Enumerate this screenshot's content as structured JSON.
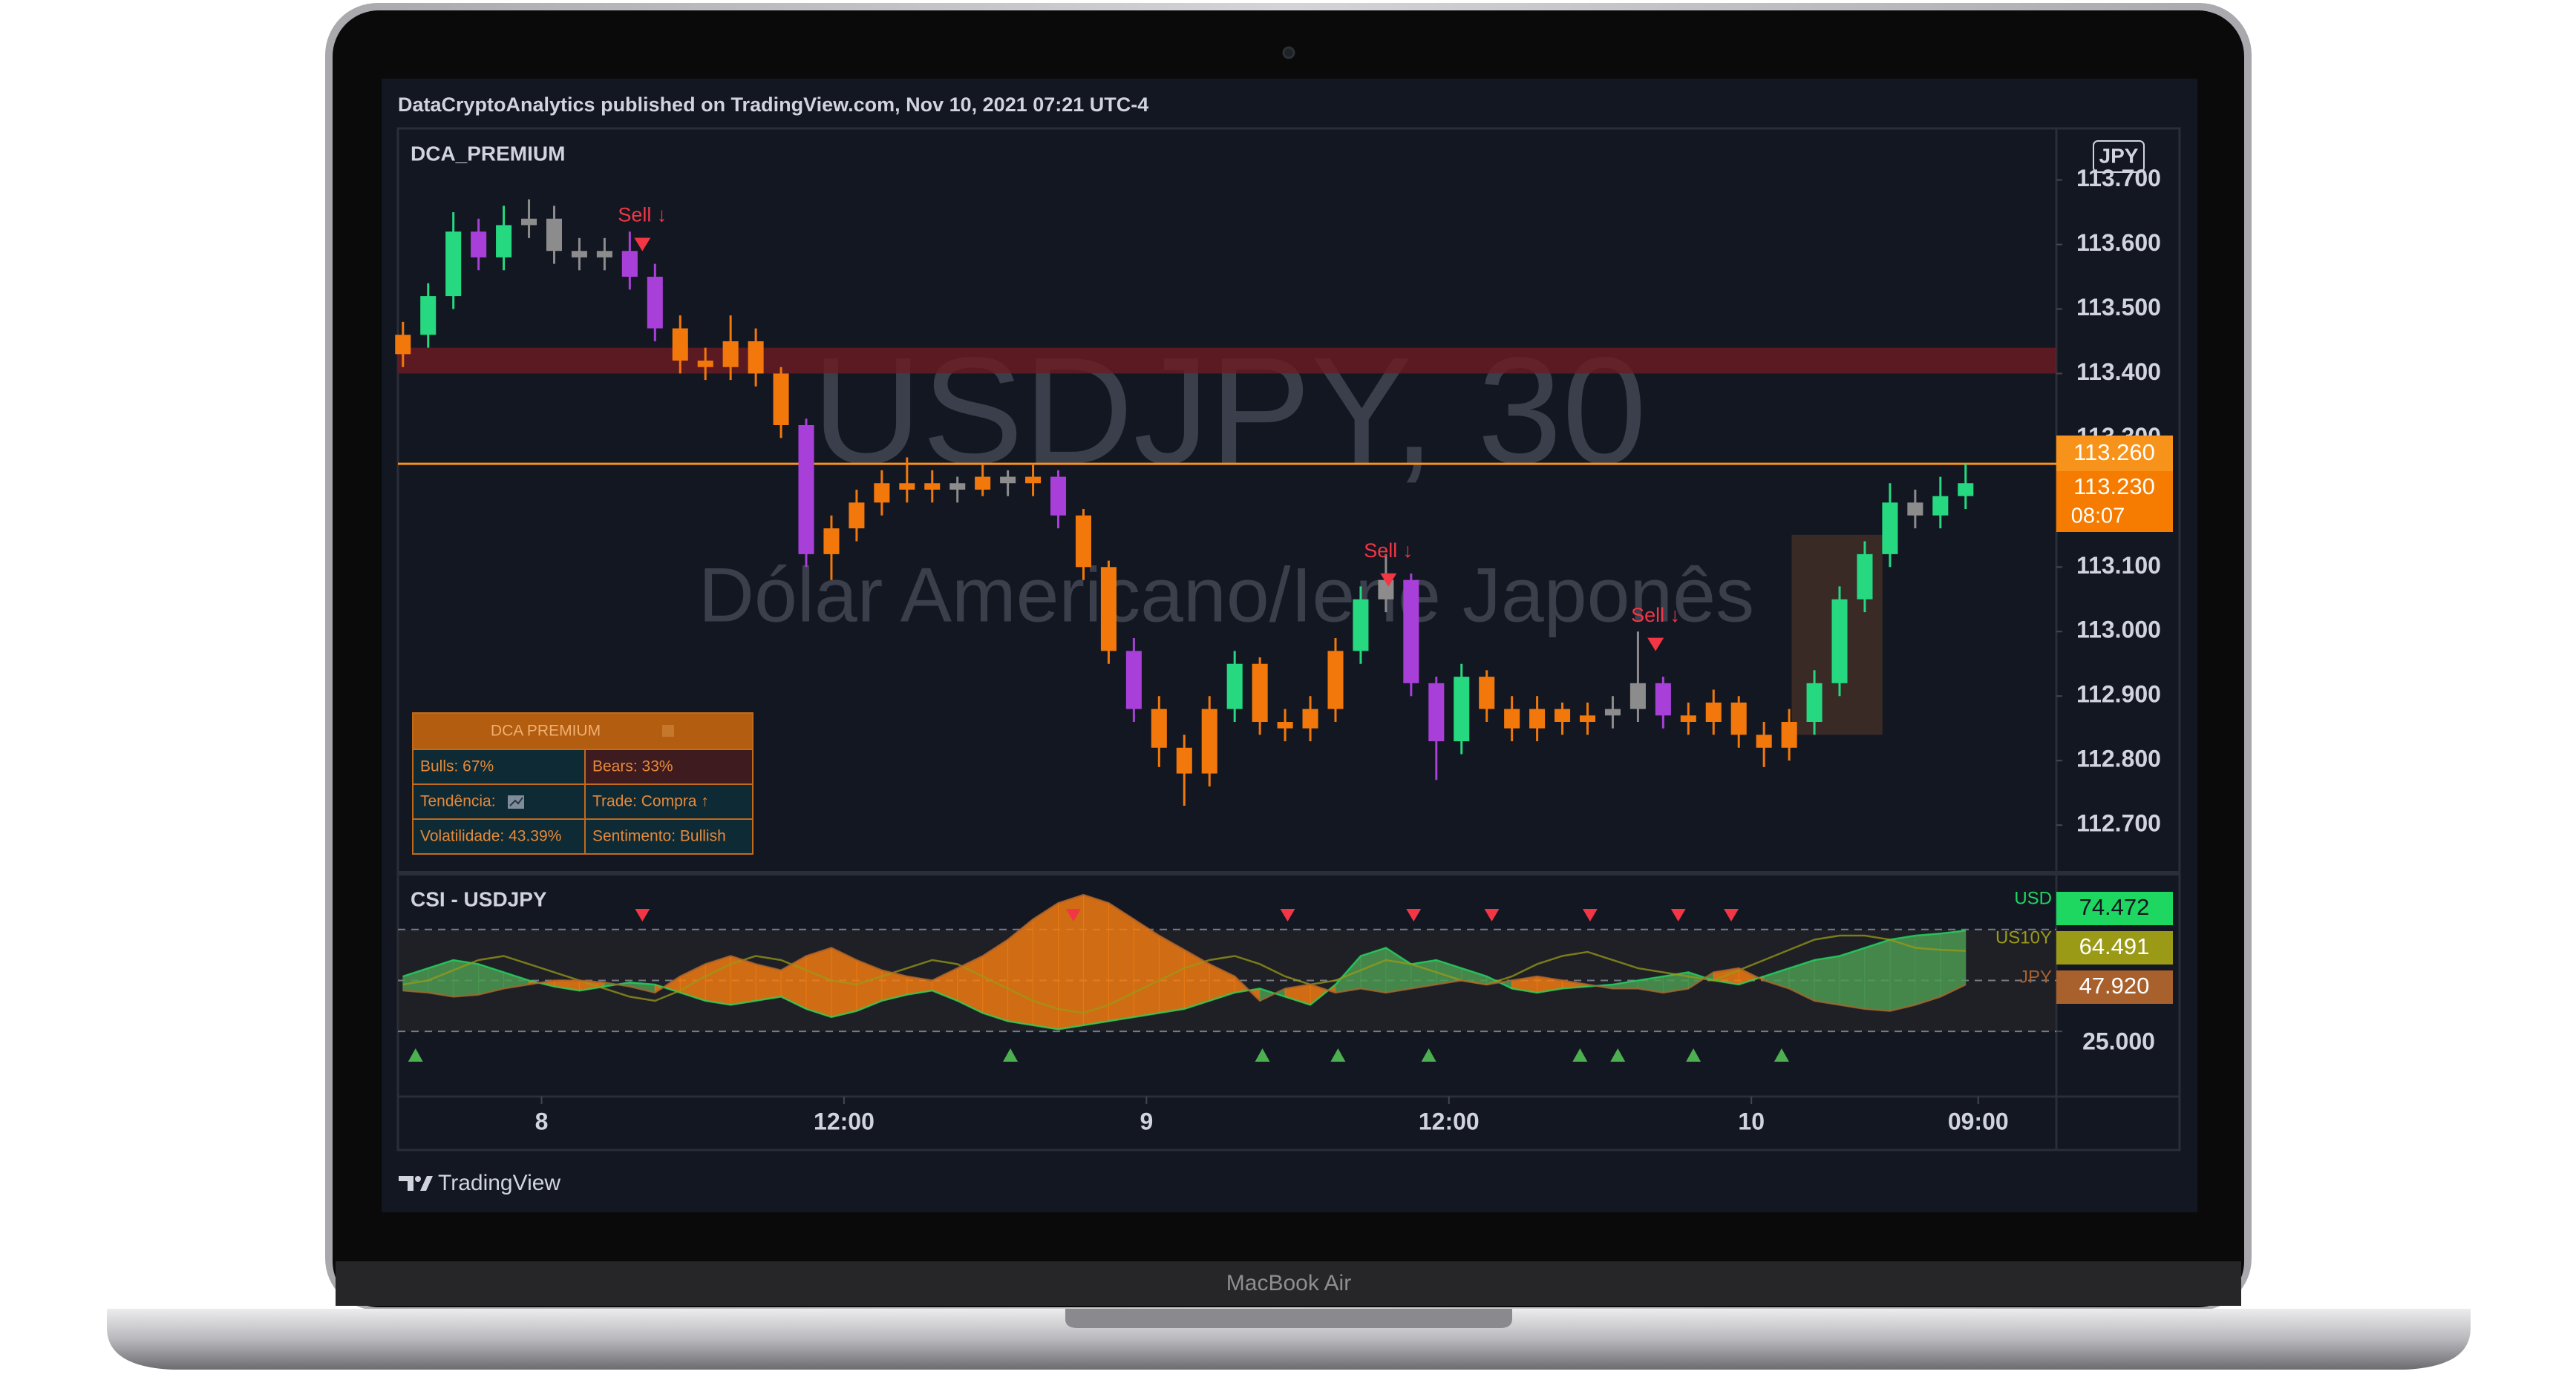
{
  "header": {
    "published": "DataCryptoAnalytics published on TradingView.com, Nov 10, 2021 07:21 UTC-4"
  },
  "device": {
    "label": "MacBook Air"
  },
  "footer": {
    "brand": "TradingView"
  },
  "table": {
    "title": "DCA PREMIUM",
    "rows": [
      [
        "Bulls: 67%",
        "Bears: 33%"
      ],
      [
        "Tendência:",
        "Trade: Compra ↑"
      ],
      [
        "Volatilidade: 43.39%",
        "Sentimento: Bullish"
      ]
    ]
  },
  "chart_data": [
    {
      "type": "candlestick",
      "title": "DCA_PREMIUM",
      "watermark": "USDJPY, 30",
      "watermark_subtitle": "Dólar Americano/Iene Japonês",
      "currency": "JPY",
      "x": [
        -5.5,
        -4.5,
        -3.5,
        -2.5,
        -1.5,
        -0.5,
        0.5,
        1.5,
        2.5,
        3.5,
        4.5,
        5.5,
        6.5,
        7.5,
        8.5,
        9.5,
        10.5,
        11.5,
        12.5,
        13.5,
        14.5,
        15.5,
        16.5,
        17.5,
        18.5,
        19.5,
        20.5,
        21.5,
        22.5,
        23.5,
        24.5,
        25.5,
        26.5,
        27.5,
        28.5,
        29.5,
        30.5,
        31.5,
        32.5,
        33.5,
        34.5,
        35.5,
        36.5,
        37.5,
        38.5,
        39.5,
        40.5,
        41.5,
        42.5,
        43.5,
        44.5,
        45.5,
        46.5,
        47.5,
        48.5,
        49.5,
        50.5,
        51.5,
        52.5,
        53.5,
        54.5,
        55.5,
        56.5
      ],
      "open": [
        113.43,
        113.46,
        113.52,
        113.62,
        113.58,
        113.63,
        113.64,
        113.59,
        113.58,
        113.59,
        113.55,
        113.47,
        113.42,
        113.41,
        113.45,
        113.4,
        113.32,
        113.12,
        113.16,
        113.2,
        113.23,
        113.22,
        113.23,
        113.22,
        113.24,
        113.23,
        113.24,
        113.18,
        113.1,
        112.97,
        112.88,
        112.82,
        112.78,
        112.88,
        112.95,
        112.86,
        112.85,
        112.88,
        112.97,
        113.05,
        113.08,
        112.92,
        112.83,
        112.93,
        112.88,
        112.85,
        112.88,
        112.86,
        112.87,
        112.88,
        112.92,
        112.87,
        112.86,
        112.89,
        112.84,
        112.82,
        112.86,
        112.92,
        113.05,
        113.12,
        113.2,
        113.18,
        113.21
      ],
      "high": [
        113.48,
        113.54,
        113.65,
        113.64,
        113.66,
        113.67,
        113.66,
        113.61,
        113.61,
        113.62,
        113.57,
        113.49,
        113.44,
        113.49,
        113.47,
        113.41,
        113.33,
        113.18,
        113.22,
        113.25,
        113.27,
        113.25,
        113.24,
        113.26,
        113.25,
        113.26,
        113.25,
        113.19,
        113.11,
        112.99,
        112.9,
        112.84,
        112.9,
        112.97,
        112.96,
        112.88,
        112.9,
        112.99,
        113.07,
        113.12,
        113.09,
        112.93,
        112.95,
        112.94,
        112.9,
        112.9,
        112.89,
        112.89,
        112.9,
        113.0,
        112.93,
        112.89,
        112.91,
        112.9,
        112.86,
        112.88,
        112.94,
        113.07,
        113.14,
        113.23,
        113.22,
        113.24,
        113.26
      ],
      "low": [
        113.41,
        113.44,
        113.5,
        113.56,
        113.56,
        113.61,
        113.57,
        113.56,
        113.56,
        113.53,
        113.45,
        113.4,
        113.39,
        113.39,
        113.38,
        113.3,
        113.1,
        113.08,
        113.14,
        113.18,
        113.2,
        113.2,
        113.2,
        113.21,
        113.21,
        113.21,
        113.16,
        113.08,
        112.95,
        112.86,
        112.79,
        112.73,
        112.76,
        112.86,
        112.84,
        112.83,
        112.83,
        112.86,
        112.95,
        113.03,
        112.9,
        112.77,
        112.81,
        112.86,
        112.83,
        112.83,
        112.84,
        112.84,
        112.85,
        112.86,
        112.85,
        112.84,
        112.84,
        112.82,
        112.79,
        112.8,
        112.84,
        112.9,
        113.03,
        113.1,
        113.16,
        113.16,
        113.19
      ],
      "close": [
        113.46,
        113.52,
        113.62,
        113.58,
        113.63,
        113.64,
        113.59,
        113.58,
        113.59,
        113.55,
        113.47,
        113.42,
        113.41,
        113.45,
        113.4,
        113.32,
        113.12,
        113.16,
        113.2,
        113.23,
        113.22,
        113.23,
        113.22,
        113.24,
        113.23,
        113.24,
        113.18,
        113.1,
        112.97,
        112.88,
        112.82,
        112.78,
        112.88,
        112.95,
        112.86,
        112.85,
        112.88,
        112.97,
        113.05,
        113.08,
        112.92,
        112.83,
        112.93,
        112.88,
        112.85,
        112.88,
        112.86,
        112.87,
        112.88,
        112.92,
        112.87,
        112.86,
        112.89,
        112.84,
        112.82,
        112.86,
        112.92,
        113.05,
        113.12,
        113.2,
        113.18,
        113.21,
        113.23
      ],
      "colors": [
        "#f2780c",
        "#26d980",
        "#26d980",
        "#a83fd9",
        "#26d980",
        "#8c8c8c",
        "#8c8c8c",
        "#8c8c8c",
        "#8c8c8c",
        "#a83fd9",
        "#a83fd9",
        "#f2780c",
        "#f2780c",
        "#f2780c",
        "#f2780c",
        "#f2780c",
        "#a83fd9",
        "#f2780c",
        "#f2780c",
        "#f2780c",
        "#f2780c",
        "#f2780c",
        "#8c8c8c",
        "#f2780c",
        "#8c8c8c",
        "#f2780c",
        "#a83fd9",
        "#f2780c",
        "#f2780c",
        "#a83fd9",
        "#f2780c",
        "#f2780c",
        "#f2780c",
        "#26d980",
        "#f2780c",
        "#f2780c",
        "#f2780c",
        "#f2780c",
        "#26d980",
        "#8c8c8c",
        "#a83fd9",
        "#a83fd9",
        "#26d980",
        "#f2780c",
        "#f2780c",
        "#f2780c",
        "#f2780c",
        "#f2780c",
        "#8c8c8c",
        "#8c8c8c",
        "#a83fd9",
        "#f2780c",
        "#f2780c",
        "#f2780c",
        "#f2780c",
        "#f2780c",
        "#26d980",
        "#26d980",
        "#26d980",
        "#26d980",
        "#8c8c8c",
        "#26d980",
        "#26d980"
      ],
      "xlim": [
        -5.7,
        60.1
      ],
      "ylim": [
        112.63,
        113.78
      ],
      "yticks": [
        {
          "value": 113.7,
          "label": "113.700"
        },
        {
          "value": 113.6,
          "label": "113.600"
        },
        {
          "value": 113.5,
          "label": "113.500"
        },
        {
          "value": 113.4,
          "label": "113.400"
        },
        {
          "value": 113.3,
          "label": "113.300"
        },
        {
          "value": 113.1,
          "label": "113.100"
        },
        {
          "value": 113.0,
          "label": "113.000"
        },
        {
          "value": 112.9,
          "label": "112.900"
        },
        {
          "value": 112.8,
          "label": "112.800"
        },
        {
          "value": 112.7,
          "label": "112.700"
        }
      ],
      "xticks": [
        {
          "value": 0,
          "label": "8"
        },
        {
          "value": 12,
          "label": "12:00"
        },
        {
          "value": 24,
          "label": "9"
        },
        {
          "value": 36,
          "label": "12:00"
        },
        {
          "value": 48,
          "label": "10"
        },
        {
          "value": 57,
          "label": "09:00"
        }
      ],
      "zone": {
        "y": [
          113.4,
          113.44
        ],
        "color": "#6e1a22"
      },
      "highlight": {
        "x": [
          49.6,
          53.2
        ],
        "y": [
          112.84,
          113.15
        ],
        "color": "#5a3a2a"
      },
      "price_line": {
        "value": 113.26,
        "label": "113.260",
        "color": "#f7931a"
      },
      "last_price": {
        "value": 113.23,
        "label": "113.230",
        "countdown": "08:07",
        "color": "#f57c00"
      },
      "annotations": [
        {
          "text": "Sell ↓",
          "x": 4.0,
          "y": 113.6
        },
        {
          "text": "Sell ↓",
          "x": 33.6,
          "y": 113.08
        },
        {
          "text": "Sell ↓",
          "x": 44.2,
          "y": 112.98
        }
      ],
      "annotation_color": "#f23645"
    },
    {
      "type": "line",
      "title": "CSI - USDJPY",
      "x": [
        -5.5,
        -4.5,
        -3.5,
        -2.5,
        -1.5,
        -0.5,
        0.5,
        1.5,
        2.5,
        3.5,
        4.5,
        5.5,
        6.5,
        7.5,
        8.5,
        9.5,
        10.5,
        11.5,
        12.5,
        13.5,
        14.5,
        15.5,
        16.5,
        17.5,
        18.5,
        19.5,
        20.5,
        21.5,
        22.5,
        23.5,
        24.5,
        25.5,
        26.5,
        27.5,
        28.5,
        29.5,
        30.5,
        31.5,
        32.5,
        33.5,
        34.5,
        35.5,
        36.5,
        37.5,
        38.5,
        39.5,
        40.5,
        41.5,
        42.5,
        43.5,
        44.5,
        45.5,
        46.5,
        47.5,
        48.5,
        49.5,
        50.5,
        51.5,
        52.5,
        53.5,
        54.5,
        55.5,
        56.5
      ],
      "series": [
        {
          "name": "USD",
          "color": "#1ed760",
          "last_label": "74.472",
          "values": [
            52,
            56,
            60,
            58,
            54,
            50,
            47,
            45,
            47,
            49,
            48,
            44,
            40,
            38,
            40,
            42,
            36,
            32,
            35,
            40,
            43,
            45,
            40,
            34,
            30,
            28,
            26,
            28,
            30,
            32,
            34,
            36,
            40,
            44,
            46,
            42,
            38,
            48,
            62,
            66,
            58,
            60,
            56,
            52,
            46,
            44,
            46,
            47,
            48,
            50,
            52,
            54,
            50,
            48,
            52,
            56,
            60,
            62,
            66,
            70,
            72,
            73,
            74.472
          ]
        },
        {
          "name": "US10Y",
          "color": "#9a9a16",
          "last_label": "64.491",
          "values": [
            48,
            50,
            55,
            60,
            62,
            58,
            54,
            50,
            46,
            42,
            40,
            45,
            52,
            58,
            62,
            60,
            55,
            50,
            48,
            52,
            56,
            60,
            58,
            52,
            46,
            40,
            36,
            34,
            38,
            44,
            50,
            56,
            60,
            62,
            58,
            52,
            48,
            50,
            55,
            60,
            58,
            54,
            50,
            48,
            52,
            58,
            62,
            64,
            60,
            56,
            54,
            52,
            50,
            55,
            60,
            65,
            70,
            72,
            72,
            70,
            66,
            65,
            64.491
          ]
        },
        {
          "name": "JPY",
          "color": "#a8612c",
          "last_label": "47.920",
          "values": [
            45,
            44,
            42,
            43,
            46,
            48,
            50,
            50,
            49,
            47,
            44,
            52,
            58,
            62,
            58,
            55,
            62,
            66,
            60,
            55,
            52,
            50,
            56,
            62,
            70,
            80,
            88,
            92,
            88,
            80,
            72,
            65,
            58,
            52,
            40,
            46,
            48,
            44,
            46,
            44,
            46,
            48,
            50,
            48,
            50,
            52,
            50,
            48,
            46,
            46,
            44,
            46,
            54,
            56,
            50,
            46,
            40,
            38,
            36,
            35,
            38,
            42,
            47.92
          ]
        }
      ],
      "cloud_colors": [
        "#4c9a52",
        "#f07b12"
      ],
      "xlim": [
        -5.7,
        60.1
      ],
      "ylim": [
        -7,
        101.5
      ],
      "yticks": [
        {
          "value": 25,
          "label": "25.000"
        }
      ],
      "levels": [
        75,
        50,
        25
      ],
      "sell_signals": [
        4.0,
        21.1,
        29.6,
        34.6,
        37.7,
        41.6,
        45.1,
        47.2
      ],
      "buy_signals": [
        -5.0,
        18.6,
        28.6,
        31.6,
        35.2,
        41.2,
        42.7,
        45.7,
        49.2
      ],
      "sell_color": "#f23645",
      "buy_color": "#4caf50"
    }
  ]
}
